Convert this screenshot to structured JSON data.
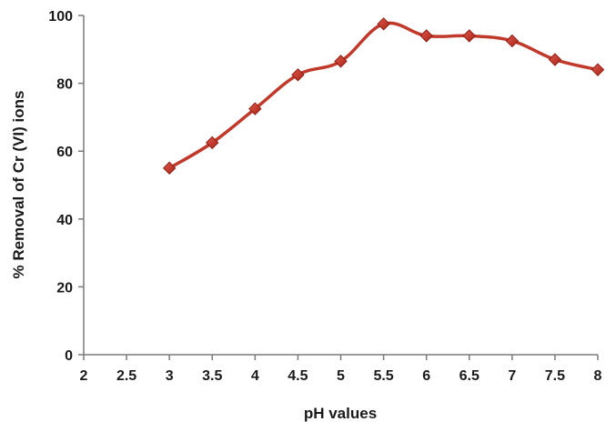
{
  "chart_data": {
    "type": "line",
    "title": "",
    "xlabel": "pH values",
    "ylabel": "% Removal of Cr (VI) ions",
    "xlim": [
      2,
      8
    ],
    "ylim": [
      0,
      100
    ],
    "x_ticks": [
      "2",
      "2.5",
      "3",
      "3.5",
      "4",
      "4.5",
      "5",
      "5.5",
      "6",
      "6.5",
      "7",
      "7.5",
      "8"
    ],
    "y_ticks": [
      "0",
      "20",
      "40",
      "60",
      "80",
      "100"
    ],
    "grid": false,
    "legend": "none",
    "series": [
      {
        "x": [
          3,
          3.5,
          4,
          4.5,
          5,
          5.5,
          6,
          6.5,
          7,
          7.5,
          8
        ],
        "y": [
          55,
          62.5,
          72.5,
          82.5,
          86.5,
          97.5,
          94,
          94,
          92.5,
          87,
          84
        ],
        "color": "#c0392b",
        "marker": "diamond"
      }
    ]
  }
}
